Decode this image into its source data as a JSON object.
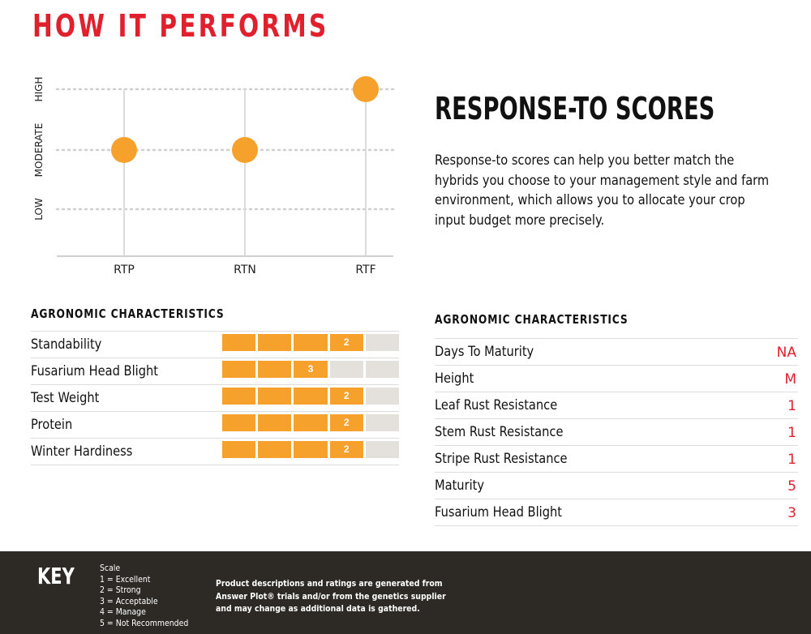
{
  "page_title": "HOW IT PERFORMS",
  "chart_data": {
    "type": "scatter",
    "y_categories": [
      "LOW",
      "MODERATE",
      "HIGH"
    ],
    "categories": [
      "RTP",
      "RTN",
      "RTF"
    ],
    "values": [
      "MODERATE",
      "MODERATE",
      "HIGH"
    ],
    "point_color": "#f7a12d"
  },
  "response_scores": {
    "title": "RESPONSE-TO SCORES",
    "body_lines": [
      "Response-to scores can help you better match the",
      "hybrids you choose to your management style and farm",
      "environment, which allows you to allocate your crop",
      "input budget more precisely."
    ]
  },
  "ratings": {
    "heading": "AGRONOMIC CHARACTERISTICS",
    "scale_max": 5,
    "active_color": "#f7a12d",
    "inactive_color": "#e4e1dd",
    "rows": [
      {
        "label": "Standability",
        "score": 2
      },
      {
        "label": "Fusarium Head Blight",
        "score": 3
      },
      {
        "label": "Test Weight",
        "score": 2
      },
      {
        "label": "Protein",
        "score": 2
      },
      {
        "label": "Winter Hardiness",
        "score": 2
      }
    ]
  },
  "characteristics": {
    "heading": "AGRONOMIC CHARACTERISTICS",
    "rows": [
      {
        "label": "Days To Maturity",
        "value": "NA"
      },
      {
        "label": "Height",
        "value": "M"
      },
      {
        "label": "Leaf Rust Resistance",
        "value": "1"
      },
      {
        "label": "Stem Rust Resistance",
        "value": "1"
      },
      {
        "label": "Stripe Rust Resistance",
        "value": "1"
      },
      {
        "label": "Maturity",
        "value": "5"
      },
      {
        "label": "Fusarium Head Blight",
        "value": "3"
      }
    ]
  },
  "footer": {
    "key_title": "KEY",
    "scale_lines": [
      "Scale",
      "1 = Excellent",
      "2 = Strong",
      "3 = Acceptable",
      "4 = Manage",
      "5 = Not Recommended"
    ],
    "disclaimer_lines": [
      "Product descriptions and ratings are generated from",
      "Answer Plot® trials and/or from the genetics supplier",
      "and may change as additional data is gathered."
    ]
  }
}
